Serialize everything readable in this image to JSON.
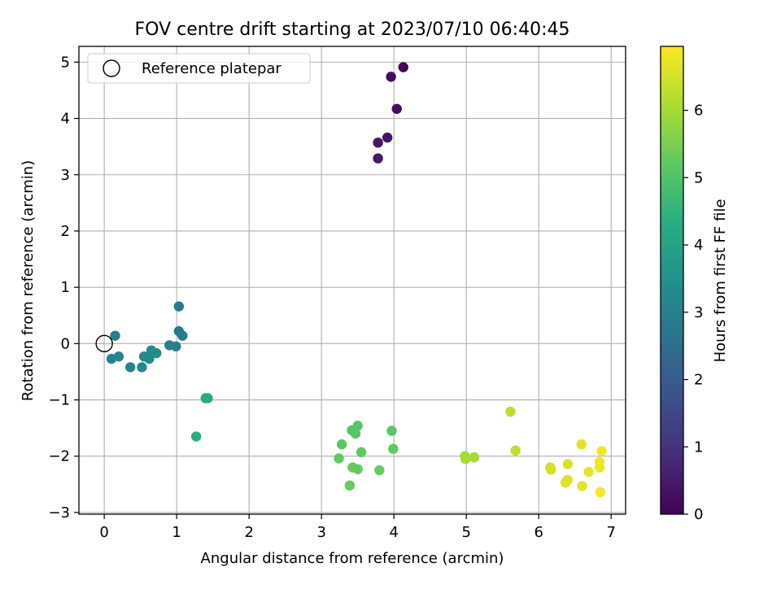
{
  "chart_data": {
    "type": "scatter",
    "title": "FOV centre drift starting at 2023/07/10 06:40:45",
    "xlabel": "Angular distance from reference (arcmin)",
    "ylabel": "Rotation from reference (arcmin)",
    "xlim": [
      -0.35,
      7.2
    ],
    "ylim": [
      -3.03,
      5.28
    ],
    "xticks": [
      0,
      1,
      2,
      3,
      4,
      5,
      6,
      7
    ],
    "yticks": [
      -3,
      -2,
      -1,
      0,
      1,
      2,
      3,
      4,
      5
    ],
    "xtick_labels": [
      "0",
      "1",
      "2",
      "3",
      "4",
      "5",
      "6",
      "7"
    ],
    "ytick_labels": [
      "−3",
      "−2",
      "−1",
      "0",
      "1",
      "2",
      "3",
      "4",
      "5"
    ],
    "grid": true,
    "legend": {
      "placement": "top-left",
      "entries": [
        "Reference platepar"
      ]
    },
    "reference_point": {
      "x": 0,
      "y": 0
    },
    "colorbar": {
      "label": "Hours from first FF file",
      "range": [
        0,
        6.95
      ],
      "ticks": [
        0,
        1,
        2,
        3,
        4,
        5,
        6
      ],
      "tick_labels": [
        "0",
        "1",
        "2",
        "3",
        "4",
        "5",
        "6"
      ],
      "colormap": "viridis"
    },
    "points": [
      {
        "x": 4.13,
        "y": 4.91,
        "c": 0.12
      },
      {
        "x": 3.96,
        "y": 4.74,
        "c": 0.2
      },
      {
        "x": 4.04,
        "y": 4.17,
        "c": 0.28
      },
      {
        "x": 3.91,
        "y": 3.66,
        "c": 0.36
      },
      {
        "x": 3.78,
        "y": 3.57,
        "c": 0.43
      },
      {
        "x": 3.78,
        "y": 3.29,
        "c": 0.5
      },
      {
        "x": 1.03,
        "y": 0.66,
        "c": 2.75
      },
      {
        "x": 1.03,
        "y": 0.22,
        "c": 2.8
      },
      {
        "x": 1.08,
        "y": 0.14,
        "c": 2.85
      },
      {
        "x": 0.99,
        "y": -0.05,
        "c": 2.9
      },
      {
        "x": 0.9,
        "y": -0.03,
        "c": 2.95
      },
      {
        "x": 0.15,
        "y": 0.14,
        "c": 3.0
      },
      {
        "x": 0.1,
        "y": -0.27,
        "c": 3.05
      },
      {
        "x": 0.2,
        "y": -0.23,
        "c": 3.1
      },
      {
        "x": 0.36,
        "y": -0.42,
        "c": 3.15
      },
      {
        "x": 0.52,
        "y": -0.42,
        "c": 3.2
      },
      {
        "x": 0.55,
        "y": -0.23,
        "c": 3.25
      },
      {
        "x": 0.62,
        "y": -0.27,
        "c": 3.3
      },
      {
        "x": 0.65,
        "y": -0.12,
        "c": 3.35
      },
      {
        "x": 0.72,
        "y": -0.17,
        "c": 3.4
      },
      {
        "x": 1.4,
        "y": -0.97,
        "c": 4.2
      },
      {
        "x": 1.43,
        "y": -0.97,
        "c": 4.25
      },
      {
        "x": 1.27,
        "y": -1.65,
        "c": 4.35
      },
      {
        "x": 3.42,
        "y": -1.54,
        "c": 5.05
      },
      {
        "x": 3.5,
        "y": -1.46,
        "c": 5.08
      },
      {
        "x": 3.47,
        "y": -1.6,
        "c": 5.1
      },
      {
        "x": 3.97,
        "y": -1.55,
        "c": 5.12
      },
      {
        "x": 3.28,
        "y": -1.79,
        "c": 5.15
      },
      {
        "x": 3.55,
        "y": -1.93,
        "c": 5.18
      },
      {
        "x": 3.99,
        "y": -1.87,
        "c": 5.2
      },
      {
        "x": 3.24,
        "y": -2.04,
        "c": 5.22
      },
      {
        "x": 3.43,
        "y": -2.2,
        "c": 5.25
      },
      {
        "x": 3.5,
        "y": -2.23,
        "c": 5.28
      },
      {
        "x": 3.8,
        "y": -2.25,
        "c": 5.3
      },
      {
        "x": 3.39,
        "y": -2.52,
        "c": 5.32
      },
      {
        "x": 4.98,
        "y": -2.0,
        "c": 5.95
      },
      {
        "x": 5.11,
        "y": -2.02,
        "c": 6.0
      },
      {
        "x": 4.99,
        "y": -2.05,
        "c": 6.05
      },
      {
        "x": 5.61,
        "y": -1.21,
        "c": 6.25
      },
      {
        "x": 5.68,
        "y": -1.9,
        "c": 6.3
      },
      {
        "x": 6.16,
        "y": -2.2,
        "c": 6.45
      },
      {
        "x": 6.17,
        "y": -2.24,
        "c": 6.5
      },
      {
        "x": 6.4,
        "y": -2.14,
        "c": 6.55
      },
      {
        "x": 6.4,
        "y": -2.42,
        "c": 6.6
      },
      {
        "x": 6.37,
        "y": -2.47,
        "c": 6.62
      },
      {
        "x": 6.59,
        "y": -1.79,
        "c": 6.65
      },
      {
        "x": 6.6,
        "y": -2.53,
        "c": 6.68
      },
      {
        "x": 6.69,
        "y": -2.28,
        "c": 6.72
      },
      {
        "x": 6.84,
        "y": -2.1,
        "c": 6.76
      },
      {
        "x": 6.84,
        "y": -2.2,
        "c": 6.8
      },
      {
        "x": 6.87,
        "y": -1.91,
        "c": 6.84
      },
      {
        "x": 6.85,
        "y": -2.64,
        "c": 6.88
      }
    ]
  }
}
